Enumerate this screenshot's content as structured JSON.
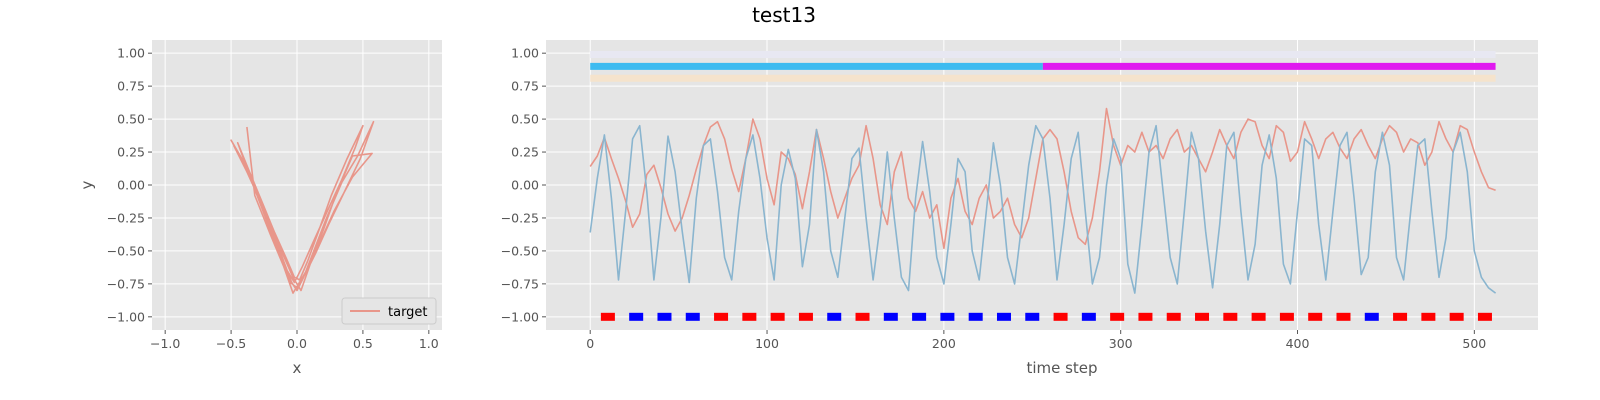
{
  "figure": {
    "title": "test13"
  },
  "chart_data": [
    {
      "type": "line",
      "xlabel": "x",
      "ylabel": "y",
      "xlim": [
        -1.1,
        1.1
      ],
      "ylim": [
        -1.1,
        1.1
      ],
      "xticks": [
        "−1.0",
        "−0.5",
        "0.0",
        "0.5",
        "1.0"
      ],
      "xtick_values": [
        -1.0,
        -0.5,
        0.0,
        0.5,
        1.0
      ],
      "yticks": [
        "−1.00",
        "−0.75",
        "−0.50",
        "−0.25",
        "0.00",
        "0.25",
        "0.50",
        "0.75",
        "1.00"
      ],
      "ytick_values": [
        -1.0,
        -0.75,
        -0.5,
        -0.25,
        0.0,
        0.25,
        0.5,
        0.75,
        1.0
      ],
      "grid": true,
      "legend": {
        "position": "lower-right",
        "entries": [
          "target"
        ]
      },
      "series": [
        {
          "name": "target",
          "color": "#e8968a",
          "x": [
            -0.48,
            -0.38,
            -0.28,
            -0.18,
            -0.1,
            -0.04,
            0.0,
            0.05,
            0.12,
            0.22,
            0.34,
            0.46,
            0.58,
            0.48,
            0.36,
            0.24,
            0.14,
            0.06,
            0.0,
            -0.05,
            -0.12,
            -0.22,
            -0.34,
            -0.45,
            -0.36,
            -0.26,
            -0.17,
            -0.08,
            -0.02,
            0.02,
            0.08,
            0.16,
            0.26,
            0.38,
            0.5,
            0.44,
            0.34,
            0.22,
            0.12,
            0.04,
            -0.02,
            -0.08,
            -0.16,
            -0.26,
            -0.36,
            -0.5,
            -0.4,
            -0.3,
            -0.2,
            -0.11,
            -0.03,
            0.03,
            0.1,
            0.2,
            0.3,
            0.42,
            0.57,
            0.42,
            0.28,
            0.18,
            0.1,
            0.03,
            -0.03,
            -0.1,
            -0.2,
            -0.32,
            -0.38
          ],
          "y": [
            0.3,
            0.1,
            -0.12,
            -0.36,
            -0.58,
            -0.74,
            -0.8,
            -0.7,
            -0.52,
            -0.26,
            0.02,
            0.22,
            0.48,
            0.2,
            -0.05,
            -0.3,
            -0.52,
            -0.68,
            -0.78,
            -0.74,
            -0.56,
            -0.3,
            0.02,
            0.32,
            0.1,
            -0.14,
            -0.36,
            -0.56,
            -0.7,
            -0.72,
            -0.58,
            -0.36,
            -0.08,
            0.2,
            0.45,
            0.28,
            0.04,
            -0.22,
            -0.44,
            -0.62,
            -0.74,
            -0.64,
            -0.44,
            -0.18,
            0.1,
            0.34,
            0.16,
            -0.06,
            -0.3,
            -0.52,
            -0.7,
            -0.8,
            -0.6,
            -0.34,
            -0.06,
            0.22,
            0.24,
            0.06,
            -0.2,
            -0.42,
            -0.6,
            -0.72,
            -0.82,
            -0.62,
            -0.38,
            -0.08,
            0.44
          ]
        }
      ]
    },
    {
      "type": "line",
      "xlabel": "time step",
      "ylabel": "",
      "xlim": [
        -25,
        536
      ],
      "ylim": [
        -1.1,
        1.1
      ],
      "xticks": [
        "0",
        "100",
        "200",
        "300",
        "400",
        "500"
      ],
      "xtick_values": [
        0,
        100,
        200,
        300,
        400,
        500
      ],
      "yticks": [
        "−1.00",
        "−0.75",
        "−0.50",
        "−0.25",
        "0.00",
        "0.25",
        "0.50",
        "0.75",
        "1.00"
      ],
      "ytick_values": [
        -1.0,
        -0.75,
        -0.5,
        -0.25,
        0.0,
        0.25,
        0.5,
        0.75,
        1.0
      ],
      "grid": true,
      "bands": [
        {
          "y": 0.99,
          "x": [
            0,
            512
          ],
          "color": "#e8e8f2"
        },
        {
          "y": 0.9,
          "x": [
            0,
            256
          ],
          "color": "#3dbbf0"
        },
        {
          "y": 0.9,
          "x": [
            256,
            512
          ],
          "color": "#e01aef"
        },
        {
          "y": 0.81,
          "x": [
            0,
            512
          ],
          "color": "#f5e3cc"
        }
      ],
      "markers": {
        "y": -1.0,
        "x": [
          10,
          26,
          42,
          58,
          74,
          90,
          106,
          122,
          138,
          154,
          170,
          186,
          202,
          218,
          234,
          250,
          266,
          282,
          298,
          314,
          330,
          346,
          362,
          378,
          394,
          410,
          426,
          442,
          458,
          474,
          490,
          506
        ],
        "colors": [
          "red",
          "blue",
          "blue",
          "blue",
          "red",
          "red",
          "red",
          "red",
          "blue",
          "red",
          "blue",
          "blue",
          "blue",
          "blue",
          "blue",
          "blue",
          "red",
          "blue",
          "red",
          "red",
          "red",
          "red",
          "red",
          "red",
          "red",
          "red",
          "red",
          "blue",
          "red",
          "red",
          "red",
          "red"
        ]
      },
      "series": [
        {
          "name": "",
          "color": "#e8968a",
          "x": [
            0,
            4,
            8,
            12,
            16,
            20,
            24,
            28,
            32,
            36,
            40,
            44,
            48,
            52,
            56,
            60,
            64,
            68,
            72,
            76,
            80,
            84,
            88,
            92,
            96,
            100,
            104,
            108,
            112,
            116,
            120,
            124,
            128,
            132,
            136,
            140,
            144,
            148,
            152,
            156,
            160,
            164,
            168,
            172,
            176,
            180,
            184,
            188,
            192,
            196,
            200,
            204,
            208,
            212,
            216,
            220,
            224,
            228,
            232,
            236,
            240,
            244,
            248,
            252,
            256,
            260,
            264,
            268,
            272,
            276,
            280,
            284,
            288,
            292,
            296,
            300,
            304,
            308,
            312,
            316,
            320,
            324,
            328,
            332,
            336,
            340,
            344,
            348,
            352,
            356,
            360,
            364,
            368,
            372,
            376,
            380,
            384,
            388,
            392,
            396,
            400,
            404,
            408,
            412,
            416,
            420,
            424,
            428,
            432,
            436,
            440,
            444,
            448,
            452,
            456,
            460,
            464,
            468,
            472,
            476,
            480,
            484,
            488,
            492,
            496,
            500,
            504,
            508,
            512
          ],
          "y": [
            0.14,
            0.22,
            0.36,
            0.2,
            0.05,
            -0.12,
            -0.32,
            -0.22,
            0.08,
            0.15,
            -0.02,
            -0.22,
            -0.35,
            -0.25,
            -0.08,
            0.12,
            0.3,
            0.44,
            0.48,
            0.35,
            0.12,
            -0.05,
            0.2,
            0.5,
            0.35,
            0.05,
            -0.15,
            0.25,
            0.2,
            0.08,
            -0.18,
            0.1,
            0.42,
            0.2,
            -0.05,
            -0.25,
            -0.1,
            0.05,
            0.15,
            0.45,
            0.2,
            -0.15,
            -0.3,
            0.1,
            0.25,
            -0.1,
            -0.2,
            -0.05,
            -0.25,
            -0.15,
            -0.48,
            -0.1,
            0.05,
            -0.2,
            -0.3,
            -0.1,
            0.0,
            -0.25,
            -0.2,
            -0.1,
            -0.3,
            -0.4,
            -0.25,
            0.05,
            0.35,
            0.42,
            0.35,
            0.1,
            -0.2,
            -0.4,
            -0.45,
            -0.25,
            0.1,
            0.58,
            0.3,
            0.15,
            0.3,
            0.25,
            0.4,
            0.25,
            0.3,
            0.2,
            0.35,
            0.42,
            0.25,
            0.3,
            0.2,
            0.1,
            0.25,
            0.42,
            0.3,
            0.2,
            0.4,
            0.5,
            0.48,
            0.3,
            0.2,
            0.45,
            0.4,
            0.18,
            0.25,
            0.48,
            0.35,
            0.2,
            0.35,
            0.4,
            0.28,
            0.2,
            0.35,
            0.42,
            0.3,
            0.2,
            0.35,
            0.45,
            0.4,
            0.25,
            0.35,
            0.32,
            0.15,
            0.25,
            0.48,
            0.35,
            0.25,
            0.45,
            0.42,
            0.25,
            0.1,
            -0.02,
            -0.04
          ]
        },
        {
          "name": "",
          "color": "#8ab5cf",
          "x": [
            0,
            4,
            8,
            12,
            16,
            20,
            24,
            28,
            32,
            36,
            40,
            44,
            48,
            52,
            56,
            60,
            64,
            68,
            72,
            76,
            80,
            84,
            88,
            92,
            96,
            100,
            104,
            108,
            112,
            116,
            120,
            124,
            128,
            132,
            136,
            140,
            144,
            148,
            152,
            156,
            160,
            164,
            168,
            172,
            176,
            180,
            184,
            188,
            192,
            196,
            200,
            204,
            208,
            212,
            216,
            220,
            224,
            228,
            232,
            236,
            240,
            244,
            248,
            252,
            256,
            260,
            264,
            268,
            272,
            276,
            280,
            284,
            288,
            292,
            296,
            300,
            304,
            308,
            312,
            316,
            320,
            324,
            328,
            332,
            336,
            340,
            344,
            348,
            352,
            356,
            360,
            364,
            368,
            372,
            376,
            380,
            384,
            388,
            392,
            396,
            400,
            404,
            408,
            412,
            416,
            420,
            424,
            428,
            432,
            436,
            440,
            444,
            448,
            452,
            456,
            460,
            464,
            468,
            472,
            476,
            480,
            484,
            488,
            492,
            496,
            500,
            504,
            508,
            512
          ],
          "y": [
            -0.36,
            0.05,
            0.38,
            -0.1,
            -0.72,
            -0.2,
            0.35,
            0.45,
            -0.05,
            -0.72,
            -0.25,
            0.37,
            0.1,
            -0.35,
            -0.74,
            -0.1,
            0.3,
            0.35,
            -0.05,
            -0.55,
            -0.72,
            -0.2,
            0.2,
            0.38,
            0.05,
            -0.4,
            -0.72,
            0.0,
            0.27,
            0.05,
            -0.62,
            -0.3,
            0.42,
            0.1,
            -0.5,
            -0.7,
            -0.25,
            0.2,
            0.28,
            -0.25,
            -0.72,
            -0.3,
            0.25,
            -0.25,
            -0.7,
            -0.8,
            -0.1,
            0.33,
            -0.05,
            -0.55,
            -0.75,
            -0.3,
            0.2,
            0.1,
            -0.5,
            -0.72,
            -0.2,
            0.32,
            0.0,
            -0.55,
            -0.75,
            -0.3,
            0.15,
            0.45,
            0.35,
            -0.1,
            -0.72,
            -0.3,
            0.2,
            0.4,
            -0.2,
            -0.75,
            -0.55,
            0.0,
            0.35,
            0.2,
            -0.6,
            -0.82,
            -0.3,
            0.25,
            0.45,
            -0.05,
            -0.55,
            -0.75,
            -0.2,
            0.4,
            0.2,
            -0.35,
            -0.78,
            -0.3,
            0.3,
            0.4,
            -0.2,
            -0.72,
            -0.45,
            0.15,
            0.38,
            0.05,
            -0.6,
            -0.75,
            -0.2,
            0.35,
            0.3,
            -0.3,
            -0.72,
            -0.2,
            0.3,
            0.4,
            -0.1,
            -0.68,
            -0.55,
            0.1,
            0.4,
            0.15,
            -0.55,
            -0.72,
            -0.2,
            0.3,
            0.35,
            -0.2,
            -0.7,
            -0.4,
            0.25,
            0.4,
            0.1,
            -0.5,
            -0.7,
            -0.78,
            -0.82
          ]
        }
      ]
    }
  ]
}
